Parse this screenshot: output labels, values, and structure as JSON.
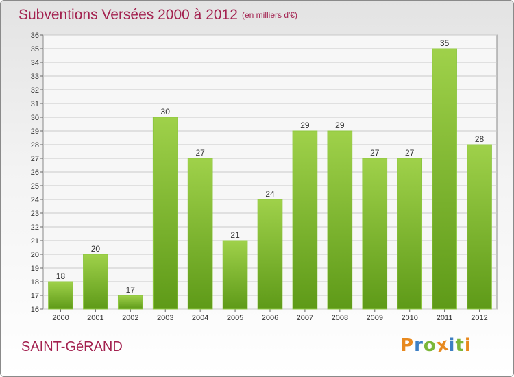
{
  "title": "Subventions Versées 2000 à 2012",
  "subtitle": "(en milliers d'€)",
  "commune": "SAINT-GéRAND",
  "brand": {
    "text": "Proxiti",
    "letters": [
      "P",
      "r",
      "o",
      "x",
      "i",
      "t",
      "i"
    ],
    "colors": [
      "#e8891e",
      "#3d7fc4",
      "#7bb638",
      "#e8891e",
      "#3d7fc4",
      "#7bb638",
      "#e8891e"
    ]
  },
  "colors": {
    "title": "#a3214f",
    "bar_top": "#9fd14a",
    "bar_bottom": "#5e9a18",
    "grid": "#c8c8c8"
  },
  "chart_data": {
    "type": "bar",
    "categories": [
      "2000",
      "2001",
      "2002",
      "2003",
      "2004",
      "2005",
      "2006",
      "2007",
      "2008",
      "2009",
      "2010",
      "2011",
      "2012"
    ],
    "values": [
      18,
      20,
      17,
      30,
      27,
      21,
      24,
      29,
      29,
      27,
      27,
      35,
      28
    ],
    "ylim": [
      16,
      36
    ],
    "yticks": [
      16,
      17,
      18,
      19,
      20,
      21,
      22,
      23,
      24,
      25,
      26,
      27,
      28,
      29,
      30,
      31,
      32,
      33,
      34,
      35,
      36
    ],
    "grid": true,
    "data_labels": true
  }
}
